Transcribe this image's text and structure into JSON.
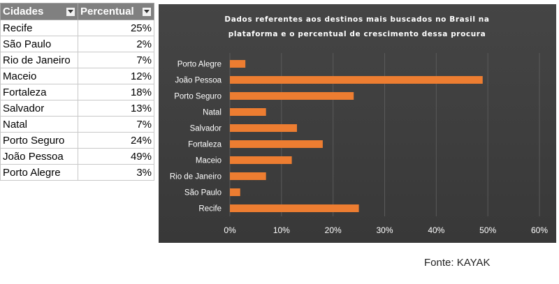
{
  "table": {
    "headers": {
      "city": "Cidades",
      "percent": "Percentual"
    },
    "rows": [
      {
        "city": "Recife",
        "percent": "25%"
      },
      {
        "city": "São Paulo",
        "percent": "2%"
      },
      {
        "city": "Rio de Janeiro",
        "percent": "7%"
      },
      {
        "city": "Maceio",
        "percent": "12%"
      },
      {
        "city": "Fortaleza",
        "percent": "18%"
      },
      {
        "city": "Salvador",
        "percent": "13%"
      },
      {
        "city": "Natal",
        "percent": "7%"
      },
      {
        "city": "Porto Seguro",
        "percent": "24%"
      },
      {
        "city": "João Pessoa",
        "percent": "49%"
      },
      {
        "city": "Porto Alegre",
        "percent": "3%"
      }
    ],
    "filter_icon": "dropdown-arrow-icon"
  },
  "chart_data": {
    "type": "bar",
    "orientation": "horizontal",
    "title_lines": [
      "Dados referentes aos destinos mais buscados no Brasil na",
      "plataforma e o percentual de crescimento dessa procura"
    ],
    "categories": [
      "Recife",
      "São Paulo",
      "Rio de Janeiro",
      "Maceio",
      "Fortaleza",
      "Salvador",
      "Natal",
      "Porto Seguro",
      "João Pessoa",
      "Porto Alegre"
    ],
    "values": [
      0.25,
      0.02,
      0.07,
      0.12,
      0.18,
      0.13,
      0.07,
      0.24,
      0.49,
      0.03
    ],
    "xlim": [
      0,
      0.6
    ],
    "x_ticks": [
      0,
      0.1,
      0.2,
      0.3,
      0.4,
      0.5,
      0.6
    ],
    "x_tick_labels": [
      "0%",
      "10%",
      "20%",
      "30%",
      "40%",
      "50%",
      "60%"
    ],
    "grid": true,
    "legend": "none",
    "colors": {
      "bar": "#ED7D31",
      "background": "#3d3d3d",
      "text": "#ffffff",
      "grid": "#5a5a5a"
    }
  },
  "source_note": "Fonte: KAYAK"
}
